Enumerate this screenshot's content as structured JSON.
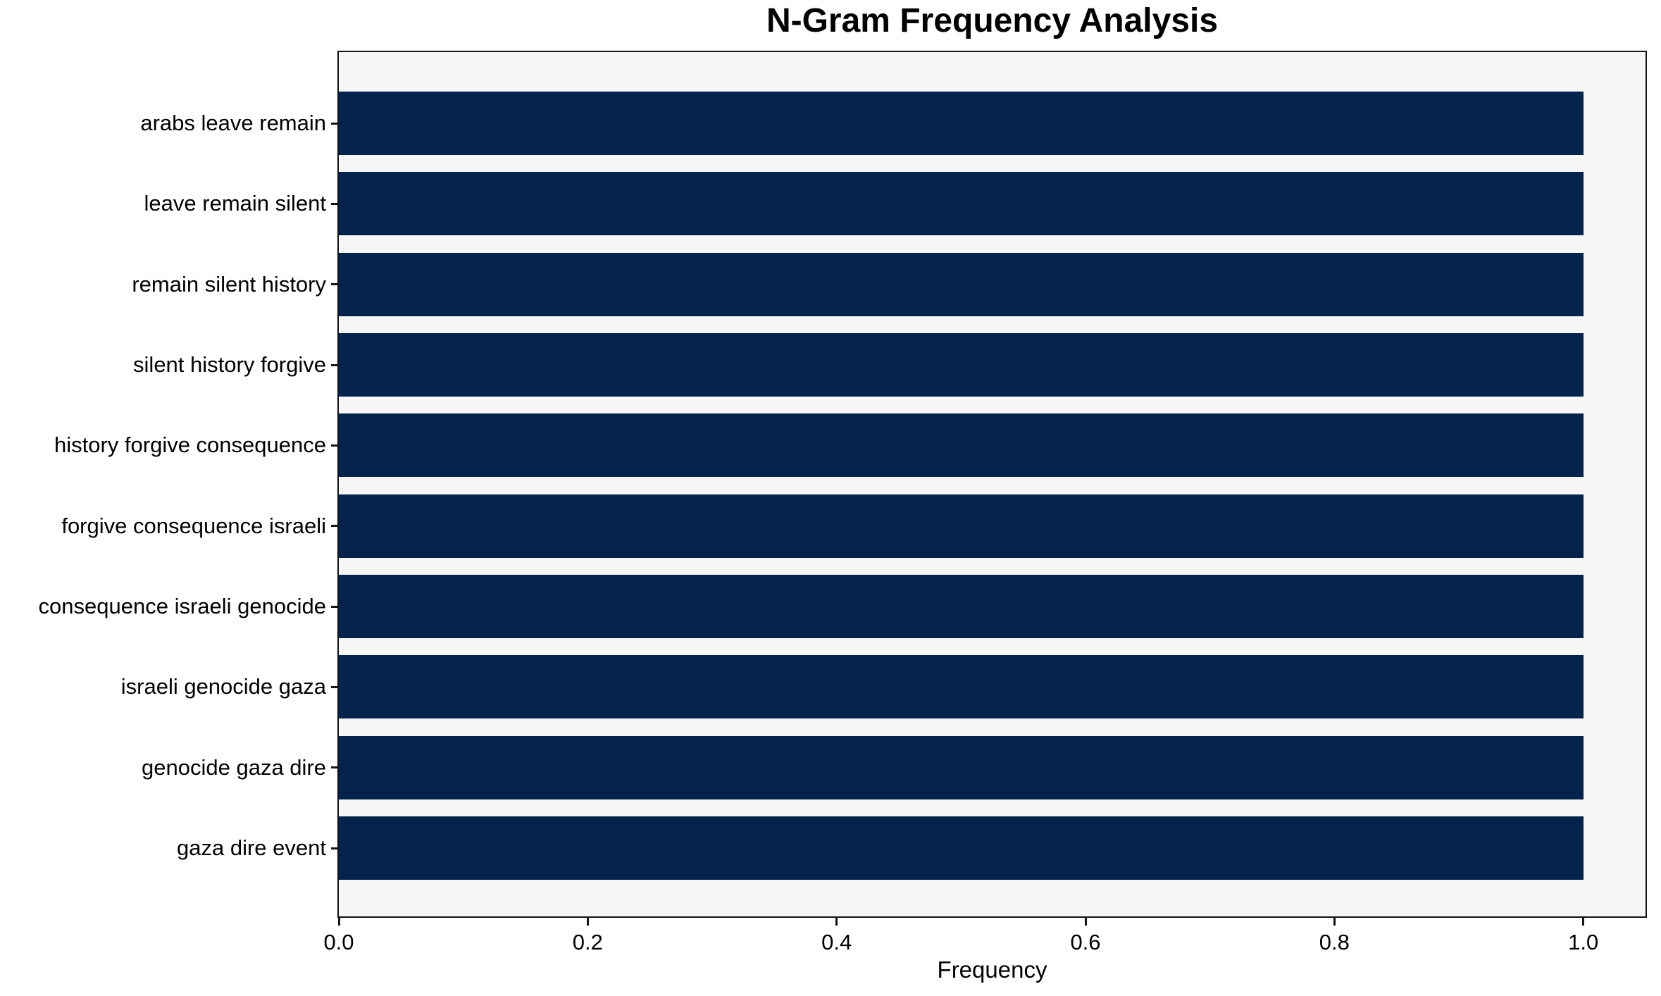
{
  "chart_data": {
    "type": "bar",
    "orientation": "horizontal",
    "title": "N-Gram Frequency Analysis",
    "xlabel": "Frequency",
    "ylabel": "",
    "categories": [
      "arabs leave remain",
      "leave remain silent",
      "remain silent history",
      "silent history forgive",
      "history forgive consequence",
      "forgive consequence israeli",
      "consequence israeli genocide",
      "israeli genocide gaza",
      "genocide gaza dire",
      "gaza dire event"
    ],
    "values": [
      1.0,
      1.0,
      1.0,
      1.0,
      1.0,
      1.0,
      1.0,
      1.0,
      1.0,
      1.0
    ],
    "xlim": [
      0,
      1.05
    ],
    "xticks": [
      "0.0",
      "0.2",
      "0.4",
      "0.6",
      "0.8",
      "1.0"
    ],
    "grid": false,
    "legend": null,
    "colors": {
      "bar": "#03234c",
      "plot_bg": "#f6f6f7",
      "figure_bg": "#ffffff",
      "spine": "#141414",
      "text": "#000000"
    }
  }
}
